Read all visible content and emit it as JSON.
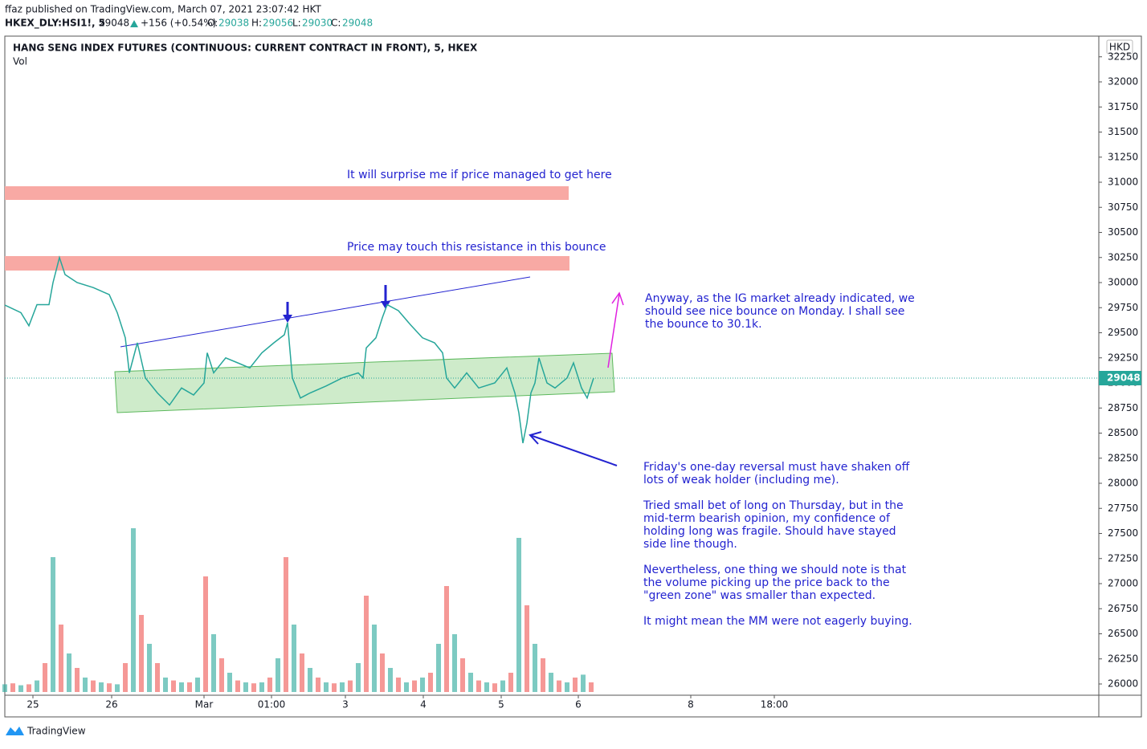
{
  "header": {
    "published": "ffaz published on TradingView.com, March 07, 2021 23:07:42 HKT",
    "symbol": "HKEX_DLY:HSI1!, 5",
    "last": "29048",
    "change": "+156 (+0.54%)",
    "o_label": "O:",
    "o": "29038",
    "h_label": "H:",
    "h": "29056",
    "l_label": "L:",
    "l": "29030",
    "c_label": "C:",
    "c": "29048"
  },
  "chart_data": {
    "type": "line",
    "title": "HANG SENG INDEX FUTURES (CONTINUOUS: CURRENT CONTRACT IN FRONT), 5, HKEX",
    "volume_label": "Vol",
    "currency": "HKD",
    "ylim": [
      25896,
      32456
    ],
    "yticks": [
      26000,
      26250,
      26500,
      26750,
      27000,
      27250,
      27500,
      27750,
      28000,
      28250,
      28500,
      28750,
      29000,
      29250,
      29500,
      29750,
      30000,
      30250,
      30500,
      30750,
      31000,
      31250,
      31500,
      31750,
      32000,
      32250
    ],
    "xlim": [
      0,
      1362
    ],
    "xticks": [
      {
        "value": 35,
        "label": "25"
      },
      {
        "value": 133,
        "label": "26"
      },
      {
        "value": 248,
        "label": "Mar"
      },
      {
        "value": 332,
        "label": "01:00"
      },
      {
        "value": 424,
        "label": "3"
      },
      {
        "value": 521,
        "label": "4"
      },
      {
        "value": 618,
        "label": "5"
      },
      {
        "value": 714,
        "label": "6"
      },
      {
        "value": 854,
        "label": "8"
      },
      {
        "value": 958,
        "label": "18:00"
      }
    ],
    "grid": false,
    "last_price": 29048,
    "series": [
      {
        "color": "#26a69a",
        "x": [
          0,
          20,
          30,
          40,
          55,
          60,
          68,
          75,
          90,
          110,
          130,
          140,
          150,
          155,
          165,
          175,
          190,
          205,
          220,
          235,
          248,
          252,
          260,
          275,
          290,
          305,
          320,
          335,
          348,
          352,
          358,
          368,
          380,
          400,
          420,
          440,
          446,
          450,
          462,
          470,
          476,
          490,
          505,
          520,
          535,
          545,
          550,
          560,
          575,
          590,
          610,
          625,
          635,
          640,
          645,
          650,
          655,
          660,
          665,
          675,
          685,
          700,
          708,
          718,
          725,
          733
        ],
        "values": [
          29776,
          29700,
          29570,
          29780,
          29780,
          30000,
          30250,
          30080,
          30000,
          29950,
          29880,
          29700,
          29450,
          29100,
          29400,
          29050,
          28900,
          28780,
          28950,
          28880,
          29000,
          29300,
          29100,
          29250,
          29200,
          29150,
          29300,
          29400,
          29480,
          29600,
          29050,
          28850,
          28900,
          28970,
          29050,
          29100,
          29050,
          29350,
          29450,
          29650,
          29780,
          29720,
          29580,
          29450,
          29400,
          29300,
          29050,
          28950,
          29100,
          28950,
          29000,
          29150,
          28900,
          28700,
          28400,
          28600,
          28900,
          29000,
          29250,
          29000,
          28950,
          29050,
          29200,
          28950,
          28850,
          29048
        ]
      },
      {
        "axis": "volume",
        "ylim": [
          0,
          20000
        ],
        "up_color": "#26a69a",
        "down_color": "#ef5350",
        "x": [
          0,
          10,
          20,
          30,
          40,
          50,
          60,
          70,
          80,
          90,
          100,
          110,
          120,
          130,
          140,
          150,
          160,
          170,
          180,
          190,
          200,
          210,
          220,
          230,
          240,
          250,
          260,
          270,
          280,
          290,
          300,
          310,
          320,
          330,
          340,
          350,
          360,
          370,
          380,
          390,
          400,
          410,
          420,
          430,
          440,
          450,
          460,
          470,
          480,
          490,
          500,
          510,
          520,
          530,
          540,
          550,
          560,
          570,
          580,
          590,
          600,
          610,
          620,
          630,
          640,
          650,
          660,
          670,
          680,
          690,
          700,
          710,
          720,
          730
        ],
        "values": [
          800,
          900,
          700,
          800,
          1200,
          3000,
          14000,
          7000,
          4000,
          2500,
          1500,
          1200,
          1000,
          900,
          800,
          3000,
          17000,
          8000,
          5000,
          3000,
          1500,
          1200,
          1000,
          1000,
          1500,
          12000,
          6000,
          3500,
          2000,
          1200,
          1000,
          900,
          1000,
          1500,
          3500,
          14000,
          7000,
          4000,
          2500,
          1500,
          1000,
          900,
          1000,
          1200,
          3000,
          10000,
          7000,
          4000,
          2500,
          1500,
          1000,
          1200,
          1500,
          2000,
          5000,
          11000,
          6000,
          3500,
          2000,
          1200,
          1000,
          900,
          1200,
          2000,
          16000,
          9000,
          5000,
          3500,
          2000,
          1200,
          1000,
          1500,
          1800,
          1000
        ]
      }
    ],
    "annotations": {
      "top_zone": "It will surprise me if price managed to get here",
      "resistance": "Price may touch this resistance in this bounce",
      "bounce": [
        "Anyway, as the IG market already indicated, we",
        "should see nice bounce on Monday. I shall see",
        "the bounce to 30.1k."
      ],
      "notes": [
        "Friday's one-day reversal must have shaken off",
        "lots of weak holder (including me).",
        "Tried small bet of long on Thursday, but in the",
        "mid-term bearish opinion, my confidence of",
        "holding long was fragile. Should have stayed",
        "side line though.",
        "Nevertheless, one thing we should note is that",
        "the volume picking up the price back to the",
        "\"green zone\" was smaller than expected.",
        "It might mean the MM were not eagerly buying."
      ]
    }
  },
  "footer": {
    "brand": "TradingView"
  }
}
